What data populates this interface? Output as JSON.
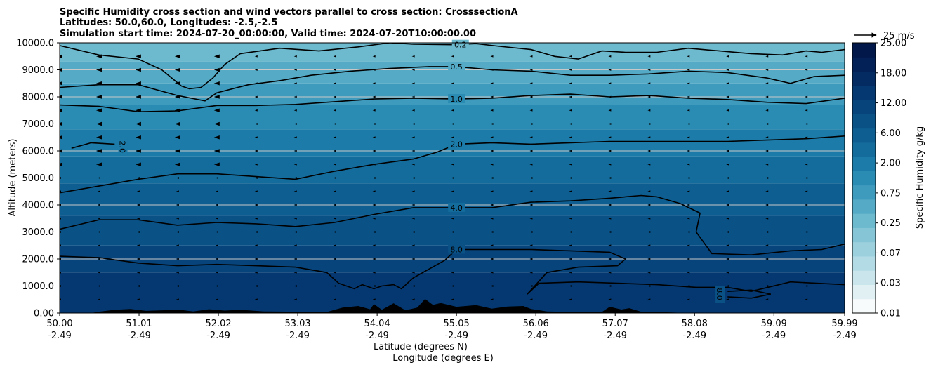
{
  "chart_data": {
    "type": "contour",
    "title_lines": [
      "Specific Humidity cross section and wind vectors parallel to cross section: CrosssectionA",
      "Latitudes: 50.0,60.0, Longitudes: -2.5,-2.5",
      "Simulation start time: 2024-07-20_00:00:00, Valid time: 2024-07-20T10:00:00.00"
    ],
    "ylabel": "Altitude (meters)",
    "xlabel_lines": [
      "Latitude (degrees N)",
      "Longitude (degrees E)"
    ],
    "ylim": [
      0,
      10000
    ],
    "grid": "horizontal",
    "y_ticks": [
      0,
      1000,
      2000,
      3000,
      4000,
      5000,
      6000,
      7000,
      8000,
      9000,
      10000
    ],
    "y_tick_labels": [
      "0.00",
      "1000.0",
      "2000.0",
      "3000.0",
      "4000.0",
      "5000.0",
      "6000.0",
      "7000.0",
      "8000.0",
      "9000.0",
      "10000.0"
    ],
    "x_ticks": [
      {
        "lat": "50.00",
        "lon": "-2.49"
      },
      {
        "lat": "51.01",
        "lon": "-2.49"
      },
      {
        "lat": "52.02",
        "lon": "-2.49"
      },
      {
        "lat": "53.03",
        "lon": "-2.49"
      },
      {
        "lat": "54.04",
        "lon": "-2.49"
      },
      {
        "lat": "55.05",
        "lon": "-2.49"
      },
      {
        "lat": "56.06",
        "lon": "-2.49"
      },
      {
        "lat": "57.07",
        "lon": "-2.49"
      },
      {
        "lat": "58.08",
        "lon": "-2.49"
      },
      {
        "lat": "59.09",
        "lon": "-2.49"
      },
      {
        "lat": "59.99",
        "lon": "-2.49"
      }
    ],
    "colorbar": {
      "label": "Specific Humidity g/kg",
      "levels": [
        0.01,
        0.02,
        0.03,
        0.05,
        0.07,
        0.1,
        0.25,
        0.5,
        0.75,
        1.0,
        2.0,
        4.0,
        6.0,
        8.0,
        12.0,
        15.0,
        18.0,
        20.0,
        25.0
      ],
      "tick_labels": [
        "0.01",
        "0.03",
        "0.07",
        "0.25",
        "0.75",
        "2.00",
        "6.00",
        "12.00",
        "18.00",
        "25.00"
      ],
      "colors": [
        "#f7fbfc",
        "#e1f0f3",
        "#cae6ec",
        "#b3dbe5",
        "#9cd0dd",
        "#85c5d6",
        "#6db9ce",
        "#55aac6",
        "#3f9bbd",
        "#2a8bb3",
        "#1c7ba8",
        "#146c9c",
        "#0e5e91",
        "#0a5186",
        "#07447b",
        "#053870",
        "#042c63",
        "#032057",
        "#02174a"
      ]
    },
    "quiver_key": {
      "label": "25 m/s",
      "value": 25
    },
    "contour_lines": [
      {
        "label": "0.2",
        "lat": [
          50.0,
          50.5,
          51.0,
          51.3,
          51.55,
          51.65,
          51.8,
          51.95,
          52.1,
          52.3,
          52.8,
          53.3,
          53.8,
          54.2,
          54.5,
          55.0,
          55.3,
          55.6,
          56.0,
          56.3,
          56.6,
          56.9,
          57.2,
          57.6,
          58.0,
          58.4,
          58.8,
          59.2,
          59.5,
          59.7,
          59.99
        ],
        "alt": [
          9900,
          9550,
          9400,
          9000,
          8400,
          8300,
          8350,
          8700,
          9200,
          9600,
          9800,
          9700,
          9850,
          10000,
          9950,
          9930,
          9970,
          9870,
          9750,
          9500,
          9400,
          9700,
          9650,
          9650,
          9800,
          9700,
          9600,
          9550,
          9700,
          9650,
          9750
        ]
      },
      {
        "label": "0.5",
        "lat": [
          50.0,
          50.5,
          51.0,
          51.5,
          51.85,
          52.0,
          52.4,
          52.8,
          53.2,
          53.7,
          54.2,
          54.7,
          55.05,
          55.5,
          56.0,
          56.5,
          57.0,
          57.5,
          58.0,
          58.5,
          59.0,
          59.3,
          59.6,
          59.99
        ],
        "alt": [
          8350,
          8450,
          8450,
          8050,
          7850,
          8150,
          8450,
          8600,
          8800,
          8950,
          9050,
          9120,
          9120,
          9000,
          8950,
          8800,
          8800,
          8850,
          8950,
          8900,
          8700,
          8500,
          8750,
          8800
        ]
      },
      {
        "label": "1.0",
        "lat": [
          50.0,
          50.5,
          51.0,
          51.5,
          52.0,
          52.5,
          53.0,
          53.5,
          54.0,
          54.5,
          55.05,
          55.5,
          56.0,
          56.5,
          57.0,
          57.5,
          58.0,
          58.5,
          59.0,
          59.5,
          59.99
        ],
        "alt": [
          7700,
          7650,
          7450,
          7480,
          7680,
          7680,
          7720,
          7820,
          7920,
          7950,
          7920,
          7950,
          8050,
          8100,
          8000,
          8050,
          7950,
          7900,
          7800,
          7750,
          7950
        ]
      },
      {
        "label": "2.0",
        "lat": [
          50.15,
          50.4,
          50.7
        ],
        "alt": [
          6100,
          6300,
          6250
        ]
      },
      {
        "label": "2.0",
        "lat": [
          50.0,
          50.5,
          51.0,
          51.5,
          52.0,
          52.5,
          53.0,
          53.5,
          54.0,
          54.5,
          54.8,
          55.05,
          55.5,
          56.0,
          56.5,
          57.0,
          57.5,
          58.0,
          58.5,
          59.0,
          59.5,
          59.99
        ],
        "alt": [
          4450,
          4700,
          4950,
          5150,
          5150,
          5050,
          4950,
          5250,
          5500,
          5700,
          5950,
          6250,
          6300,
          6250,
          6300,
          6350,
          6350,
          6350,
          6350,
          6400,
          6450,
          6550
        ]
      },
      {
        "label": "4.0",
        "lat": [
          50.0,
          50.5,
          51.0,
          51.5,
          52.0,
          52.5,
          53.0,
          53.5,
          54.0,
          54.5,
          55.05,
          55.5,
          56.0,
          56.5,
          57.0,
          57.4,
          57.6,
          57.9,
          58.15,
          58.1,
          58.3,
          58.8,
          59.3,
          59.7,
          59.99
        ],
        "alt": [
          3100,
          3450,
          3450,
          3250,
          3350,
          3300,
          3200,
          3350,
          3650,
          3900,
          3900,
          3900,
          4100,
          4150,
          4250,
          4350,
          4300,
          4050,
          3700,
          3000,
          2200,
          2150,
          2300,
          2350,
          2550
        ]
      },
      {
        "label": "8.0",
        "lat": [
          50.0,
          50.5,
          51.0,
          51.5,
          52.0,
          52.5,
          53.0,
          53.4,
          53.55,
          53.75,
          53.85,
          54.0,
          54.1,
          54.25,
          54.35,
          54.5,
          54.9,
          55.05,
          55.5,
          56.0,
          56.5,
          57.0,
          57.2,
          57.1,
          56.6,
          56.2,
          55.95,
          56.1,
          56.6,
          57.1,
          57.6,
          58.1,
          58.5,
          58.8,
          59.3,
          59.99
        ],
        "alt": [
          2100,
          2050,
          1850,
          1750,
          1800,
          1750,
          1700,
          1500,
          1100,
          900,
          1050,
          900,
          1000,
          1050,
          900,
          1300,
          1950,
          2350,
          2350,
          2350,
          2300,
          2250,
          2000,
          1750,
          1700,
          1500,
          700,
          1100,
          1150,
          1100,
          1050,
          950,
          950,
          800,
          1150,
          1050
        ]
      },
      {
        "label": "8.0",
        "lat": [
          58.5,
          58.8,
          59.05,
          58.8,
          58.5
        ],
        "alt": [
          800,
          850,
          700,
          550,
          600
        ]
      }
    ],
    "terrain": {
      "lat": [
        50.0,
        50.4,
        50.5,
        50.7,
        50.9,
        51.1,
        51.3,
        51.5,
        51.7,
        51.9,
        52.1,
        52.3,
        52.6,
        53.0,
        53.4,
        53.6,
        53.8,
        53.95,
        54.0,
        54.1,
        54.25,
        54.4,
        54.55,
        54.65,
        54.75,
        54.85,
        55.05,
        55.3,
        55.5,
        55.7,
        55.9,
        56.0,
        56.2,
        56.5,
        56.9,
        57.0,
        57.15,
        57.25,
        57.4,
        57.6,
        58.0,
        59.99
      ],
      "alt": [
        0,
        0,
        50,
        120,
        150,
        80,
        100,
        130,
        60,
        140,
        90,
        120,
        60,
        50,
        40,
        200,
        260,
        140,
        330,
        120,
        360,
        100,
        200,
        520,
        300,
        370,
        230,
        290,
        160,
        240,
        260,
        150,
        60,
        40,
        40,
        230,
        130,
        180,
        50,
        40,
        0,
        0
      ]
    }
  }
}
